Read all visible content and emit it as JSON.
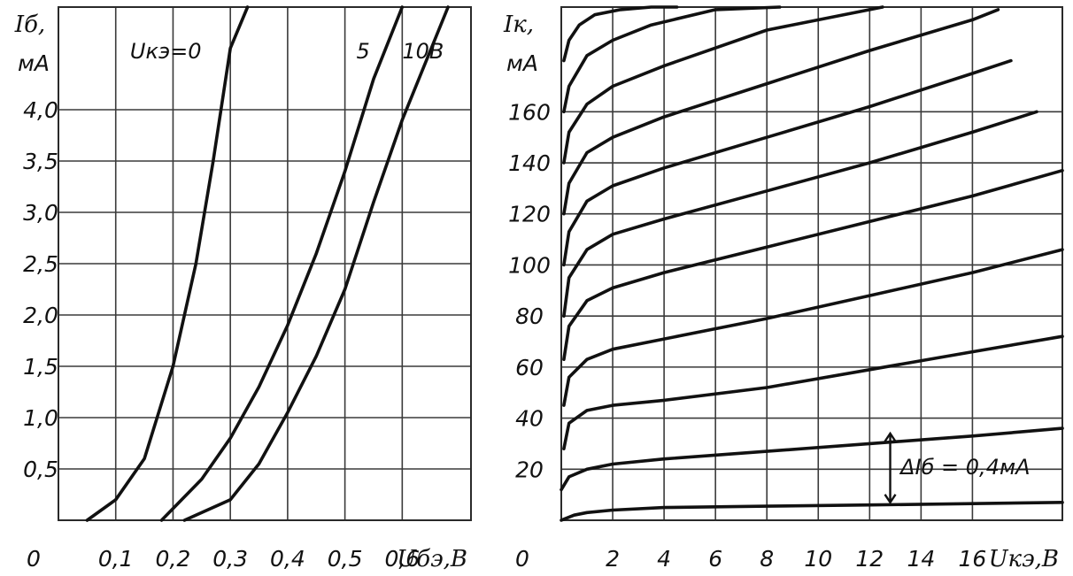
{
  "chart_data": [
    {
      "type": "line",
      "ylabel": "Iб,",
      "yunit": "мА",
      "xlabel": "Uбэ,В",
      "origin_label": "0",
      "xlim": [
        0,
        0.72
      ],
      "ylim": [
        0,
        5.0
      ],
      "xticks": [
        0.1,
        0.2,
        0.3,
        0.4,
        0.5,
        0.6
      ],
      "xtick_labels": [
        "0,1",
        "0,2",
        "0,3",
        "0,4",
        "0,5",
        "0,6"
      ],
      "yticks": [
        0.5,
        1.0,
        1.5,
        2.0,
        2.5,
        3.0,
        3.5,
        4.0
      ],
      "ytick_labels": [
        "0,5",
        "1,0",
        "1,5",
        "2,0",
        "2,5",
        "3,0",
        "3,5",
        "4,0"
      ],
      "grid": true,
      "series": [
        {
          "name": "Uкэ=0",
          "x": [
            0.05,
            0.1,
            0.15,
            0.2,
            0.24,
            0.27,
            0.3,
            0.33
          ],
          "y": [
            0.0,
            0.2,
            0.6,
            1.5,
            2.5,
            3.5,
            4.6,
            5.0
          ]
        },
        {
          "name": "5",
          "x": [
            0.18,
            0.25,
            0.3,
            0.35,
            0.4,
            0.45,
            0.5,
            0.55,
            0.6
          ],
          "y": [
            0.0,
            0.4,
            0.8,
            1.3,
            1.9,
            2.6,
            3.4,
            4.3,
            5.0
          ]
        },
        {
          "name": "10В",
          "x": [
            0.22,
            0.3,
            0.35,
            0.4,
            0.45,
            0.5,
            0.55,
            0.6,
            0.68
          ],
          "y": [
            0.0,
            0.2,
            0.55,
            1.05,
            1.6,
            2.25,
            3.1,
            3.9,
            5.0
          ]
        }
      ],
      "curve_labels": [
        "Uкэ=0",
        "5",
        "10В"
      ]
    },
    {
      "type": "line",
      "ylabel": "Iк,",
      "yunit": "мА",
      "xlabel": "Uкэ,В",
      "origin_label": "0",
      "xlim": [
        0,
        19.5
      ],
      "ylim": [
        0,
        201
      ],
      "xticks": [
        2,
        4,
        6,
        8,
        10,
        12,
        14,
        16
      ],
      "xtick_labels": [
        "2",
        "4",
        "6",
        "8",
        "10",
        "12",
        "14",
        "16"
      ],
      "yticks": [
        20,
        40,
        60,
        80,
        100,
        120,
        140,
        160
      ],
      "ytick_labels": [
        "20",
        "40",
        "60",
        "80",
        "100",
        "120",
        "140",
        "160"
      ],
      "grid": true,
      "annotation": "ΔIб = 0,4мА",
      "series": [
        {
          "x": [
            0,
            0.5,
            1,
            2,
            4,
            8,
            12,
            16,
            19.5
          ],
          "y": [
            0,
            2,
            3,
            4,
            5,
            5.5,
            6,
            6.5,
            7
          ]
        },
        {
          "x": [
            0,
            0.3,
            1,
            2,
            4,
            8,
            12,
            16,
            19.5
          ],
          "y": [
            12,
            17,
            20,
            22,
            24,
            27,
            30,
            33,
            36
          ]
        },
        {
          "x": [
            0.1,
            0.3,
            1,
            2,
            4,
            8,
            12,
            16,
            19.5
          ],
          "y": [
            28,
            38,
            43,
            45,
            47,
            52,
            59,
            66,
            72
          ]
        },
        {
          "x": [
            0.1,
            0.3,
            1,
            2,
            4,
            8,
            12,
            16,
            19.5
          ],
          "y": [
            45,
            56,
            63,
            67,
            71,
            79,
            88,
            97,
            106
          ]
        },
        {
          "x": [
            0.1,
            0.3,
            1,
            2,
            4,
            8,
            12,
            16,
            19.5
          ],
          "y": [
            63,
            76,
            86,
            91,
            97,
            107,
            117,
            127,
            137
          ]
        },
        {
          "x": [
            0.1,
            0.3,
            1,
            2,
            4,
            8,
            12,
            16,
            18.5
          ],
          "y": [
            80,
            95,
            106,
            112,
            118,
            129,
            140,
            152,
            160
          ]
        },
        {
          "x": [
            0.1,
            0.3,
            1,
            2,
            4,
            8,
            12,
            16,
            17.5
          ],
          "y": [
            100,
            113,
            125,
            131,
            138,
            150,
            162,
            175,
            180
          ]
        },
        {
          "x": [
            0.1,
            0.3,
            1,
            2,
            4,
            8,
            12,
            16,
            17
          ],
          "y": [
            120,
            132,
            144,
            150,
            158,
            171,
            184,
            196,
            200
          ]
        },
        {
          "x": [
            0.1,
            0.3,
            1,
            2,
            4,
            8,
            12.5
          ],
          "y": [
            140,
            152,
            163,
            170,
            178,
            192,
            201
          ]
        },
        {
          "x": [
            0.1,
            0.3,
            1,
            2,
            3.5,
            6,
            8.5
          ],
          "y": [
            160,
            170,
            182,
            188,
            194,
            200,
            201
          ]
        },
        {
          "x": [
            0.1,
            0.3,
            0.7,
            1.3,
            2.3,
            3.5,
            4.5
          ],
          "y": [
            180,
            188,
            194,
            198,
            200,
            201,
            201
          ]
        }
      ]
    }
  ]
}
